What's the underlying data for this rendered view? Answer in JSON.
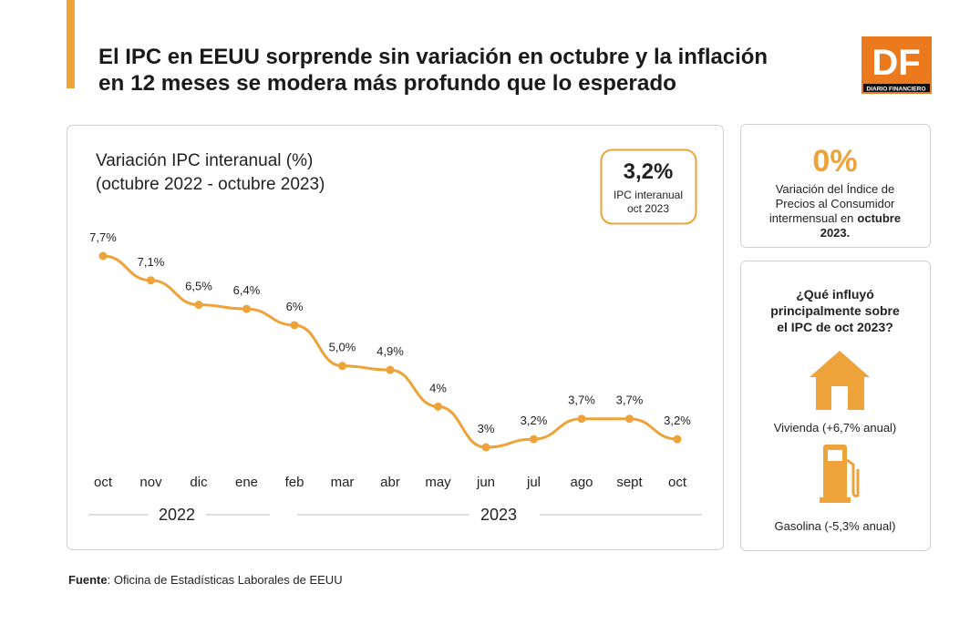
{
  "header": {
    "title_lines": [
      "El IPC en EEUU sorprende sin variación en octubre y la inflación",
      "en 12 meses se modera más profundo que lo esperado"
    ],
    "logo": "DF",
    "logo_caption": "DIARIO FINANCIERO"
  },
  "chart_data": {
    "type": "line",
    "title": "Variación IPC interanual (%)",
    "subtitle": "(octubre 2022 - octubre 2023)",
    "categories": [
      "oct",
      "nov",
      "dic",
      "ene",
      "feb",
      "mar",
      "abr",
      "may",
      "jun",
      "jul",
      "ago",
      "sept",
      "oct"
    ],
    "values": [
      7.7,
      7.1,
      6.5,
      6.4,
      6,
      5.0,
      4.9,
      4,
      3,
      3.2,
      3.7,
      3.7,
      3.2
    ],
    "value_labels": [
      "7,7%",
      "7,1%",
      "6,5%",
      "6,4%",
      "6%",
      "5,0%",
      "4,9%",
      "4%",
      "3%",
      "3,2%",
      "3,7%",
      "3,7%",
      "3,2%"
    ],
    "color": "#eda23a",
    "years": [
      "2022",
      "2023"
    ],
    "highlight": {
      "value": "3,2%",
      "label_lines": [
        "IPC interanual",
        "oct 2023"
      ]
    }
  },
  "side": {
    "big": "0%",
    "description": [
      "Variación del Índice de",
      "Precios al Consumidor",
      "intermensual en"
    ],
    "description_bold": [
      "octubre",
      "2023."
    ],
    "question": [
      "¿Qué influyó",
      "principalmente sobre",
      "el IPC de oct 2023?"
    ],
    "items": [
      "Vivienda (+6,7% anual)",
      "Gasolina (-5,3% anual)"
    ]
  },
  "source": {
    "label": "Fuente",
    "text": ": Oficina de Estadísticas Laborales de EEUU"
  }
}
